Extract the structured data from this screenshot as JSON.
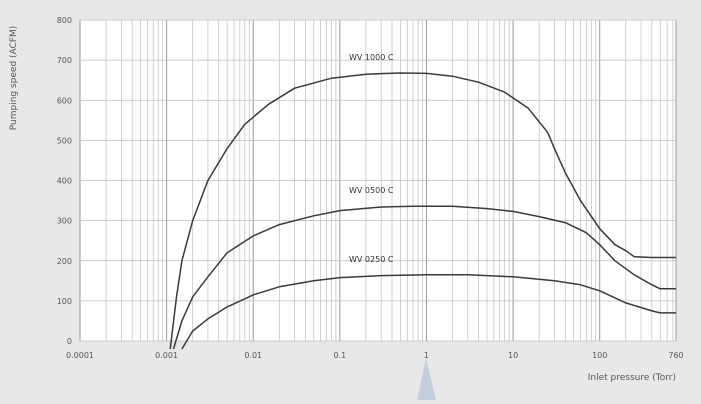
{
  "chart_data": {
    "type": "line",
    "title": "",
    "xlabel": "Inlet pressure (Torr)",
    "ylabel": "Pumping speed (ACFM)",
    "x_scale": "log",
    "xlim": [
      0.0001,
      760
    ],
    "ylim": [
      0,
      800
    ],
    "grid": true,
    "x_ticks": [
      {
        "value": 0.0001,
        "label": "0.0001"
      },
      {
        "value": 0.001,
        "label": "0.001"
      },
      {
        "value": 0.01,
        "label": "0.01"
      },
      {
        "value": 0.1,
        "label": "0.1"
      },
      {
        "value": 1,
        "label": "1"
      },
      {
        "value": 10,
        "label": "10"
      },
      {
        "value": 100,
        "label": "100"
      },
      {
        "value": 760,
        "label": "760"
      }
    ],
    "y_ticks": [
      0,
      100,
      200,
      300,
      400,
      500,
      600,
      700,
      800
    ],
    "series": [
      {
        "name": "WV 1000 C",
        "points": [
          [
            0.0011,
            0
          ],
          [
            0.0013,
            110
          ],
          [
            0.0015,
            200
          ],
          [
            0.002,
            300
          ],
          [
            0.003,
            400
          ],
          [
            0.005,
            480
          ],
          [
            0.008,
            540
          ],
          [
            0.015,
            590
          ],
          [
            0.03,
            630
          ],
          [
            0.08,
            655
          ],
          [
            0.2,
            665
          ],
          [
            0.5,
            668
          ],
          [
            1,
            667
          ],
          [
            2,
            660
          ],
          [
            4,
            645
          ],
          [
            8,
            620
          ],
          [
            15,
            580
          ],
          [
            25,
            520
          ],
          [
            30,
            480
          ],
          [
            40,
            420
          ],
          [
            60,
            350
          ],
          [
            100,
            280
          ],
          [
            150,
            240
          ],
          [
            200,
            225
          ],
          [
            250,
            210
          ],
          [
            400,
            208
          ],
          [
            760,
            208
          ]
        ]
      },
      {
        "name": "WV 0500 C",
        "points": [
          [
            0.0012,
            0
          ],
          [
            0.0015,
            50
          ],
          [
            0.002,
            110
          ],
          [
            0.003,
            160
          ],
          [
            0.005,
            220
          ],
          [
            0.01,
            262
          ],
          [
            0.02,
            290
          ],
          [
            0.05,
            312
          ],
          [
            0.1,
            325
          ],
          [
            0.3,
            334
          ],
          [
            0.7,
            336
          ],
          [
            2,
            336
          ],
          [
            5,
            330
          ],
          [
            10,
            323
          ],
          [
            20,
            310
          ],
          [
            40,
            295
          ],
          [
            70,
            270
          ],
          [
            100,
            240
          ],
          [
            150,
            200
          ],
          [
            250,
            165
          ],
          [
            400,
            140
          ],
          [
            500,
            130
          ],
          [
            760,
            130
          ]
        ]
      },
      {
        "name": "WV 0250 C",
        "points": [
          [
            0.0015,
            0
          ],
          [
            0.002,
            25
          ],
          [
            0.003,
            55
          ],
          [
            0.005,
            85
          ],
          [
            0.01,
            115
          ],
          [
            0.02,
            135
          ],
          [
            0.05,
            150
          ],
          [
            0.1,
            158
          ],
          [
            0.3,
            163
          ],
          [
            1,
            165
          ],
          [
            3,
            165
          ],
          [
            10,
            160
          ],
          [
            30,
            150
          ],
          [
            60,
            140
          ],
          [
            100,
            125
          ],
          [
            200,
            95
          ],
          [
            400,
            75
          ],
          [
            500,
            70
          ],
          [
            760,
            70
          ]
        ]
      }
    ]
  }
}
